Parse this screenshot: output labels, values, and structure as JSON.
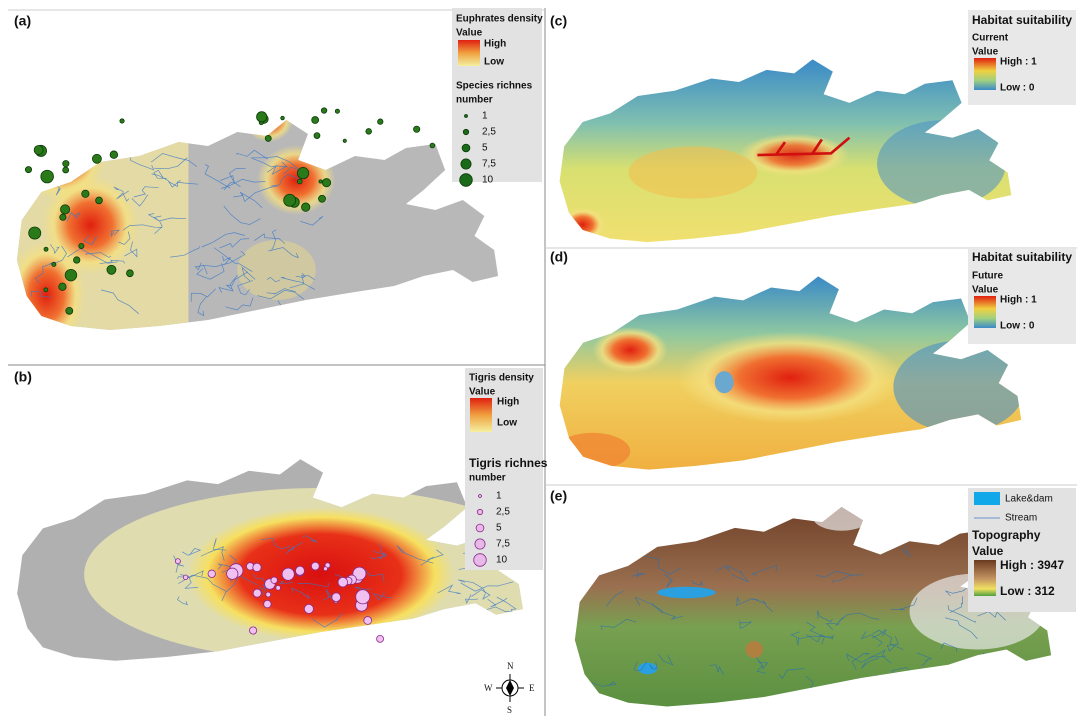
{
  "panels": {
    "a": {
      "label": "(a)",
      "legend": {
        "title": "Euphrates density",
        "value_heading": "Value",
        "high": "High",
        "low": "Low",
        "richness_title": "Species richnes",
        "richness_unit": "number",
        "richness_classes": [
          "1",
          "2,5",
          "5",
          "7,5",
          "10"
        ]
      }
    },
    "b": {
      "label": "(b)",
      "legend": {
        "title": "Tigris density",
        "value_heading": "Value",
        "high": "High",
        "low": "Low",
        "richness_title": "Tigris richnes",
        "richness_unit": "number",
        "richness_classes": [
          "1",
          "2,5",
          "5",
          "7,5",
          "10"
        ]
      },
      "compass": {
        "n": "N",
        "e": "E",
        "s": "S",
        "w": "W"
      }
    },
    "c": {
      "label": "(c)",
      "legend": {
        "title": "Habitat suitability",
        "scenario": "Current",
        "value_heading": "Value",
        "high": "High : 1",
        "low": "Low : 0"
      }
    },
    "d": {
      "label": "(d)",
      "legend": {
        "title": "Habitat suitability",
        "scenario": "Future",
        "value_heading": "Value",
        "high": "High : 1",
        "low": "Low : 0"
      }
    },
    "e": {
      "label": "(e)",
      "legend": {
        "lake": "Lake&dam",
        "stream": "Stream",
        "title": "Topography",
        "value_heading": "Value",
        "high": "High : 3947",
        "low": "Low : 312"
      }
    }
  }
}
